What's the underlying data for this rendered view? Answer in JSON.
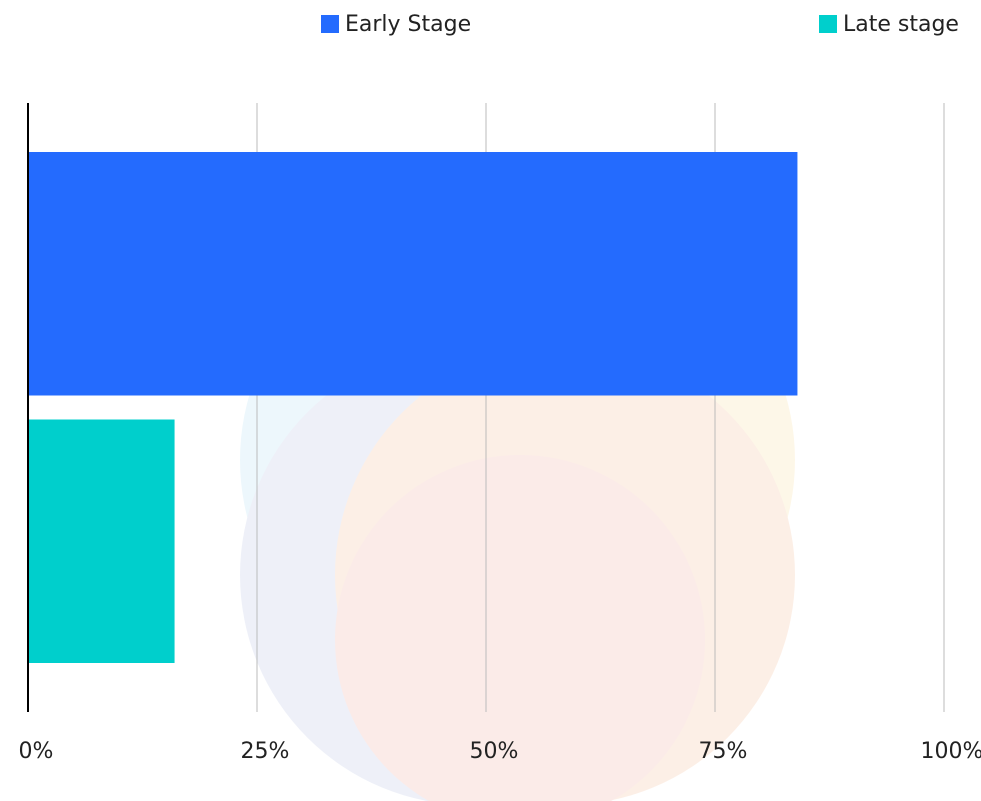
{
  "chart_data": {
    "type": "bar",
    "orientation": "horizontal",
    "series": [
      {
        "name": "Early Stage",
        "color": "#246bfe",
        "values": [
          84
        ]
      },
      {
        "name": "Late stage",
        "color": "#00cfcc",
        "values": [
          16
        ]
      }
    ],
    "xlim": [
      0,
      100
    ],
    "xticks": [
      {
        "value": 0,
        "label": "0%"
      },
      {
        "value": 25,
        "label": "25%"
      },
      {
        "value": 50,
        "label": "50%"
      },
      {
        "value": 75,
        "label": "75%"
      },
      {
        "value": 100,
        "label": "100%"
      }
    ],
    "grid": true,
    "legend": "top"
  }
}
